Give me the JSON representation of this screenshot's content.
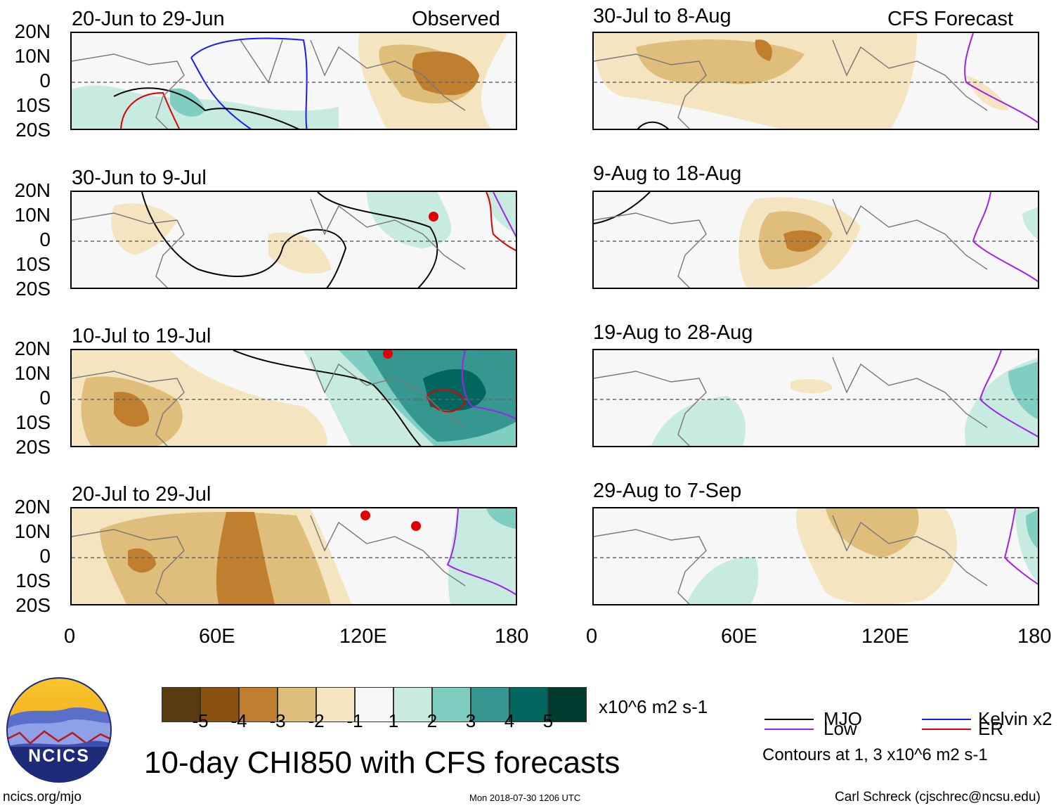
{
  "header": {
    "observed_label": "Observed",
    "forecast_label": "CFS Forecast"
  },
  "lat_labels": [
    "20N",
    "10N",
    "0",
    "10S",
    "20S"
  ],
  "lon_labels": [
    "0",
    "60E",
    "120E",
    "180"
  ],
  "panels": {
    "p1": {
      "title": "20-Jun to 29-Jun"
    },
    "p2": {
      "title": "30-Jun to 9-Jul"
    },
    "p3": {
      "title": "10-Jul to 19-Jul"
    },
    "p4": {
      "title": "20-Jul to 29-Jul"
    },
    "p5": {
      "title": "30-Jul to 8-Aug"
    },
    "p6": {
      "title": "9-Aug to 18-Aug"
    },
    "p7": {
      "title": "19-Aug to 28-Aug"
    },
    "p8": {
      "title": "29-Aug to 7-Sep"
    }
  },
  "colorbar": {
    "colors": [
      "#5a3a0f",
      "#8a520f",
      "#bf7f2f",
      "#dfbd7a",
      "#f4e4bf",
      "#f7f7f7",
      "#c7ebe0",
      "#80cdc1",
      "#35978f",
      "#01665e",
      "#003c30"
    ],
    "labels": [
      "-5",
      "-4",
      "-3",
      "-2",
      "-1",
      "1",
      "2",
      "3",
      "4",
      "5"
    ],
    "units": "x10^6 m2 s-1"
  },
  "legend": {
    "mjo": {
      "label": "MJO",
      "color": "#000000"
    },
    "kelvin": {
      "label": "Kelvin x2",
      "color": "#1a1aff"
    },
    "low": {
      "label": "Low",
      "color": "#a020f0"
    },
    "er": {
      "label": "ER",
      "color": "#e00000"
    },
    "contours_note": "Contours at 1, 3 x10^6 m2 s-1"
  },
  "main_title": "10-day CHI850 with CFS forecasts",
  "logo_text": "NCICS",
  "footer": {
    "url": "ncics.org/mjo",
    "timestamp": "Mon 2018-07-30 1206 UTC",
    "author": "Carl Schreck (cjschrec@ncsu.edu)"
  }
}
